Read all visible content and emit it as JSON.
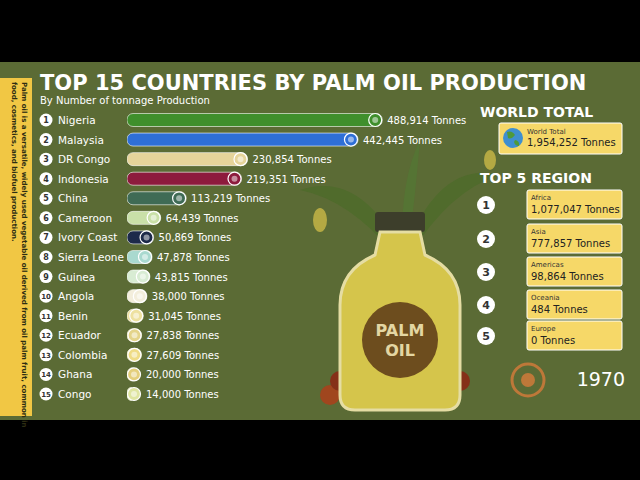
{
  "chart_data": {
    "type": "bar",
    "orientation": "horizontal",
    "title": "TOP 15 COUNTRIES BY PALM OIL PRODUCTION",
    "subtitle": "By Number of tonnage Production",
    "categories": [
      "Nigeria",
      "Malaysia",
      "DR Congo",
      "Indonesia",
      "China",
      "Cameroon",
      "Ivory Coast",
      "Sierra Leone",
      "Guinea",
      "Angola",
      "Benin",
      "Ecuador",
      "Colombia",
      "Ghana",
      "Congo"
    ],
    "ranks": [
      1,
      2,
      3,
      4,
      5,
      6,
      7,
      8,
      9,
      10,
      11,
      12,
      13,
      14,
      15
    ],
    "values": [
      488914,
      442445,
      230854,
      219351,
      113219,
      64439,
      50869,
      47878,
      43815,
      38000,
      31045,
      27838,
      27609,
      20000,
      14000
    ],
    "value_labels": [
      "488,914 Tonnes",
      "442,445 Tonnes",
      "230,854 Tonnes",
      "219,351 Tonnes",
      "113,219 Tonnes",
      "64,439 Tonnes",
      "50,869 Tonnes",
      "47,878 Tonnes",
      "43,815 Tonnes",
      "38,000 Tonnes",
      "31,045 Tonnes",
      "27,838 Tonnes",
      "27,609 Tonnes",
      "20,000 Tonnes",
      "14,000 Tonnes"
    ],
    "colors": [
      "#3f8f2c",
      "#2e6fd6",
      "#e6d49a",
      "#8d1b3d",
      "#3f6b55",
      "#c9e0a8",
      "#1d2a4a",
      "#a9d9cf",
      "#d8ecd3",
      "#f3eedc",
      "#eee1a0",
      "#e4d48a",
      "#efdc86",
      "#e4cf7b",
      "#dfe5a1"
    ],
    "xlim": [
      0,
      500000
    ],
    "data_labels": true,
    "tick_labels": false,
    "grid": false,
    "annotations": [
      "1970"
    ]
  },
  "sidebar_text": [
    "Palm oil is a versatile, widely used vegetable oil derived from oil palm fruit, common in",
    "food, cosmetics, and biofuel production."
  ],
  "world_total": {
    "heading": "WORLD TOTAL",
    "label": "World Total",
    "value": "1,954,252 Tonnes"
  },
  "regions": {
    "heading": "TOP 5 REGION",
    "ranks": [
      "1",
      "2",
      "3",
      "4",
      "5"
    ],
    "names": [
      "Africa",
      "Asia",
      "Americas",
      "Oceania",
      "Europe"
    ],
    "values": [
      "1,077,047 Tonnes",
      "777,857 Tonnes",
      "98,864 Tonnes",
      "484 Tonnes",
      "0 Tonnes"
    ]
  },
  "illustration": {
    "label_lines": [
      "PALM",
      "OIL"
    ]
  }
}
